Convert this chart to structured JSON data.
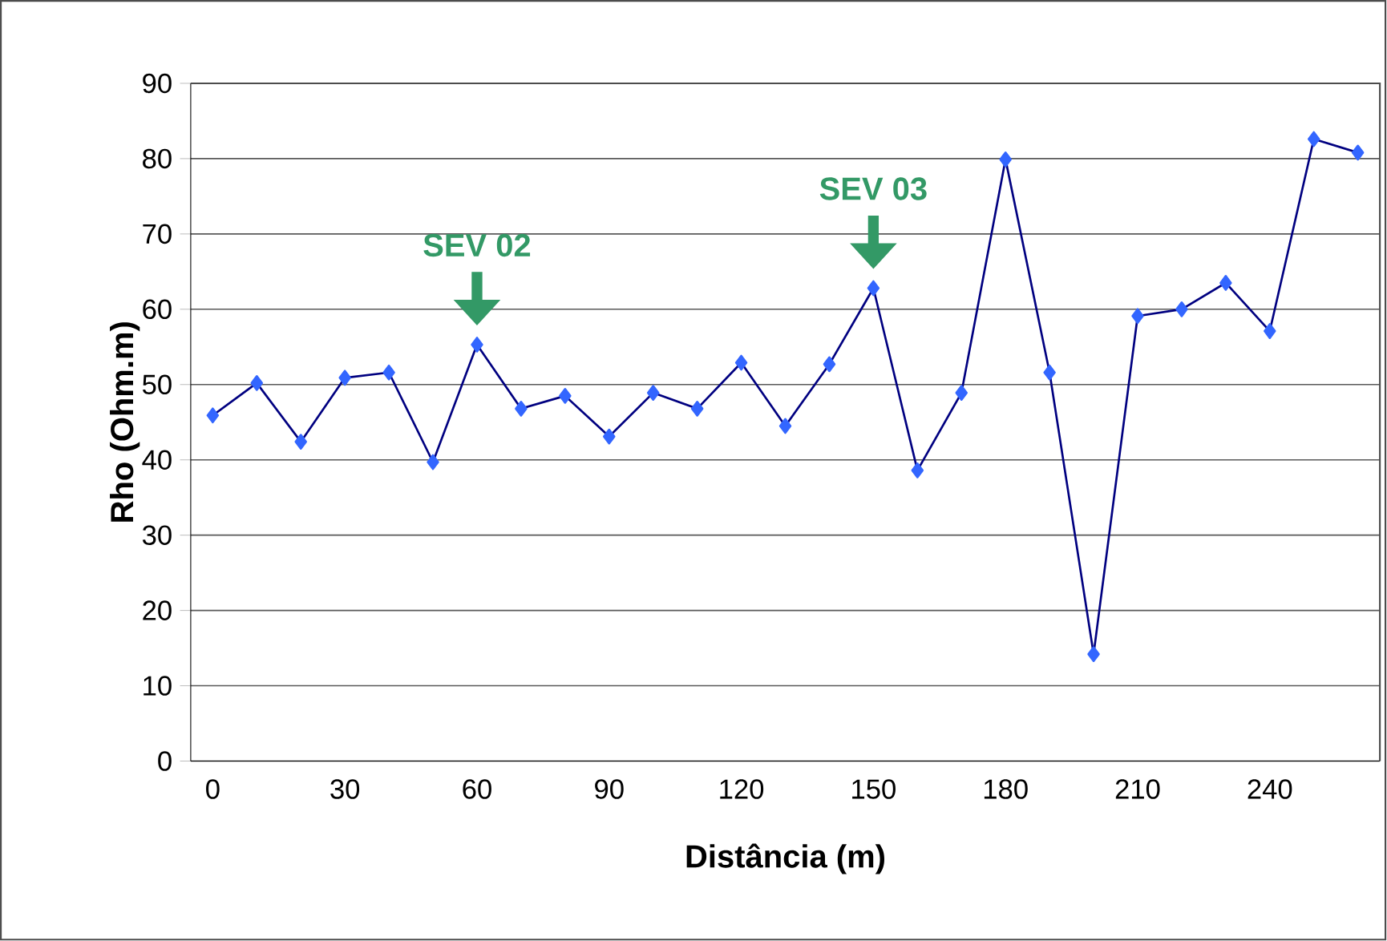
{
  "chart_data": {
    "type": "line",
    "xlabel": "Distância (m)",
    "ylabel": "Rho (Ohm.m)",
    "categories": [
      "0",
      null,
      null,
      "30",
      null,
      null,
      "60",
      null,
      null,
      "90",
      null,
      null,
      "120",
      null,
      null,
      "150",
      null,
      null,
      "180",
      null,
      null,
      "210",
      null,
      null,
      "240",
      null,
      null
    ],
    "series": [
      {
        "color": "#3366ff",
        "values": [
          45.9,
          50.2,
          42.4,
          50.9,
          51.6,
          39.7,
          55.3,
          46.8,
          48.5,
          43.1,
          48.9,
          46.8,
          52.9,
          44.5,
          52.7,
          62.8,
          38.6,
          48.9,
          79.9,
          51.6,
          14.2,
          59.1,
          60.0,
          63.5,
          57.1,
          82.6,
          80.8
        ]
      }
    ],
    "ylim": [
      0,
      90
    ],
    "yticks": [
      0,
      10,
      20,
      30,
      40,
      50,
      60,
      70,
      80,
      90
    ],
    "grid": "y",
    "marker": "diamond",
    "line_style": "solid",
    "annotations": [
      {
        "text": "SEV 02",
        "x": "60",
        "y": 55.3
      },
      {
        "text": "SEV 03",
        "x": "150",
        "y": 62.8
      }
    ]
  }
}
